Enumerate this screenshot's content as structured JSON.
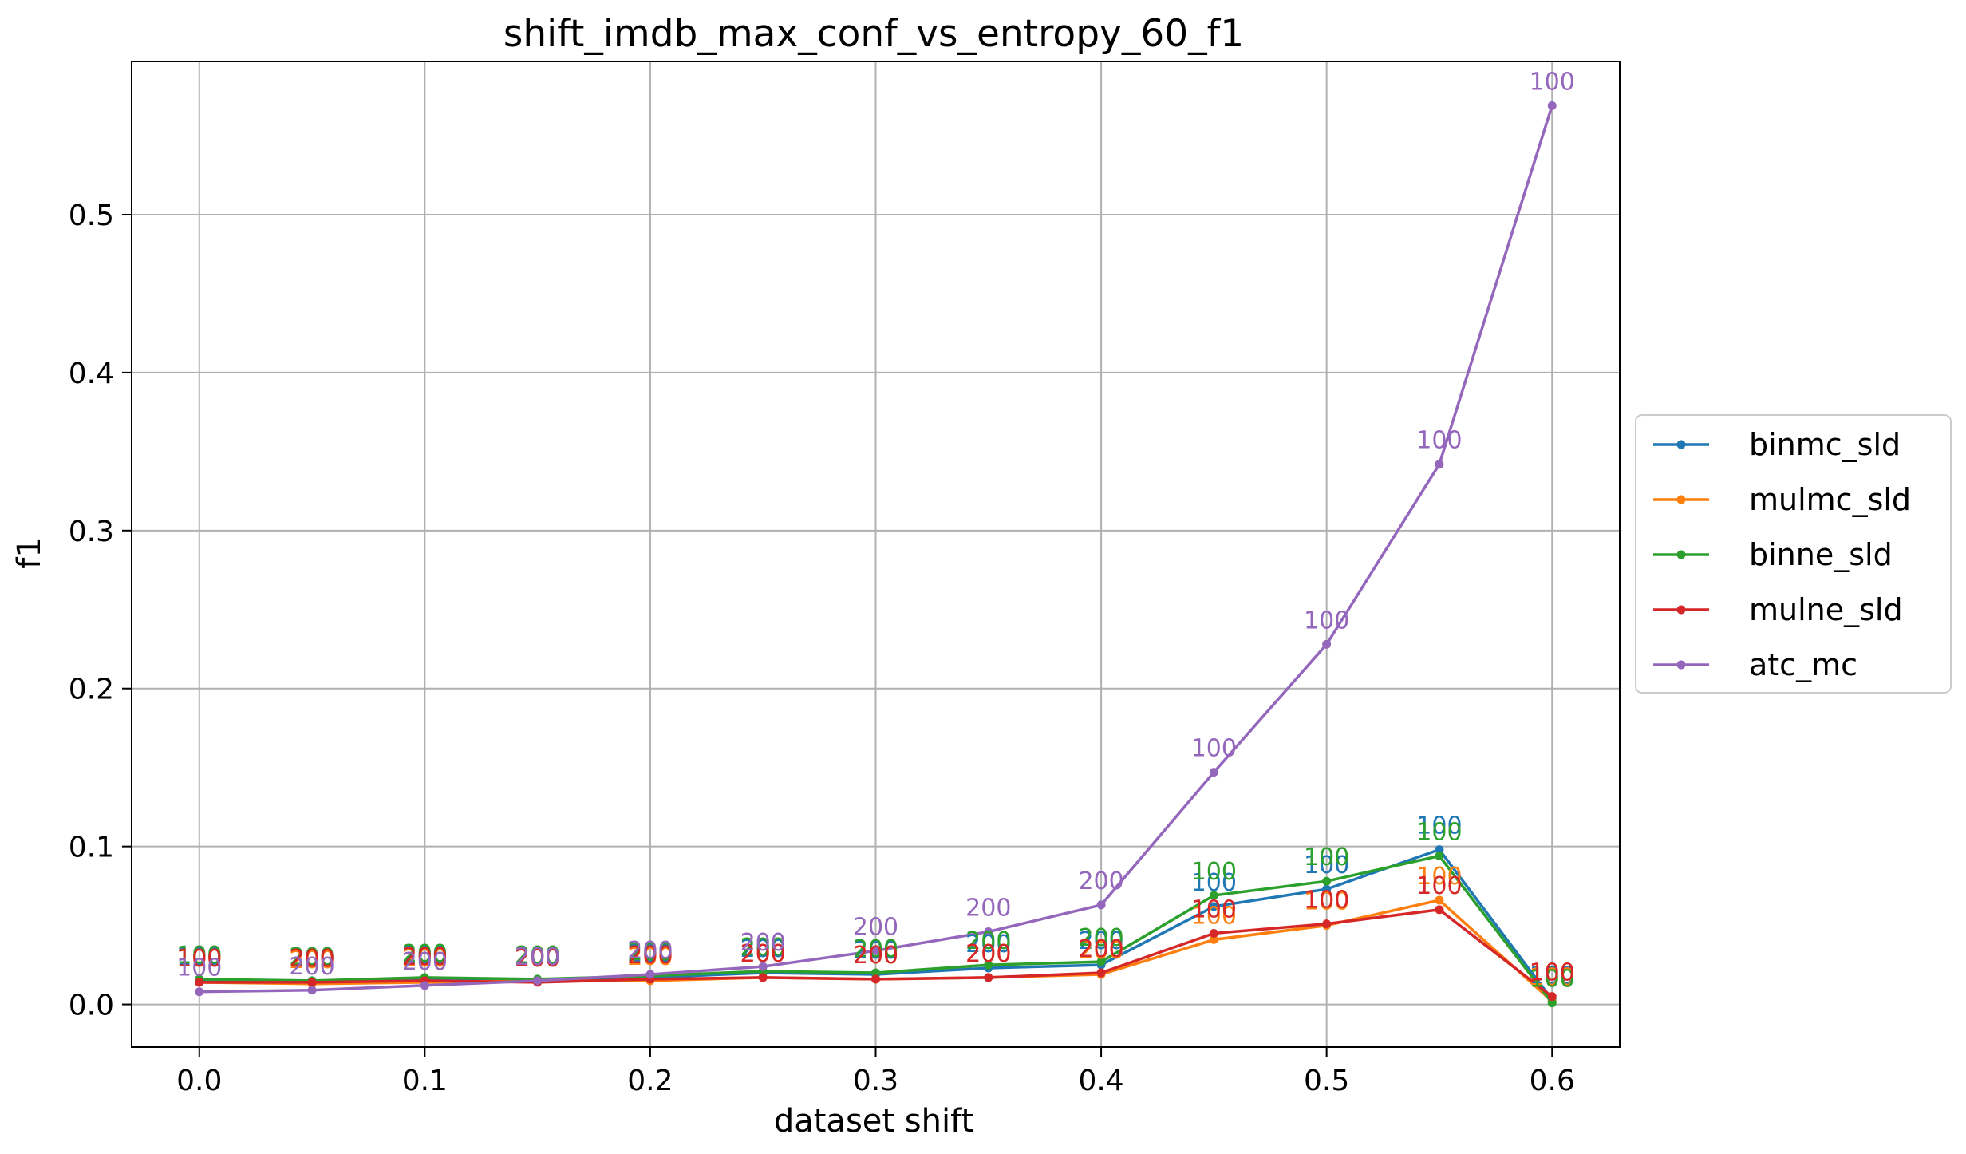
{
  "chart_data": {
    "type": "line",
    "title": "shift_imdb_max_conf_vs_entropy_60_f1",
    "xlabel": "dataset shift",
    "ylabel": "f1",
    "xlim": [
      -0.03,
      0.63
    ],
    "ylim": [
      -0.027,
      0.597
    ],
    "x_ticks": [
      0.0,
      0.1,
      0.2,
      0.3,
      0.4,
      0.5,
      0.6
    ],
    "x_tick_labels": [
      "0.0",
      "0.1",
      "0.2",
      "0.3",
      "0.4",
      "0.5",
      "0.6"
    ],
    "y_ticks": [
      0.0,
      0.1,
      0.2,
      0.3,
      0.4,
      0.5
    ],
    "y_tick_labels": [
      "0.0",
      "0.1",
      "0.2",
      "0.3",
      "0.4",
      "0.5"
    ],
    "grid": true,
    "legend_position": "right-outside",
    "x": [
      0.0,
      0.05,
      0.1,
      0.15,
      0.2,
      0.25,
      0.3,
      0.35,
      0.4,
      0.45,
      0.5,
      0.55,
      0.6
    ],
    "point_labels": [
      "100",
      "200",
      "200",
      "200",
      "200",
      "200",
      "200",
      "200",
      "200",
      "100",
      "100",
      "100",
      "100"
    ],
    "series": [
      {
        "name": "binmc_sld",
        "color": "#1f77b4",
        "values": [
          0.015,
          0.014,
          0.016,
          0.015,
          0.017,
          0.02,
          0.019,
          0.023,
          0.025,
          0.062,
          0.073,
          0.098,
          0.003
        ]
      },
      {
        "name": "mulmc_sld",
        "color": "#ff7f0e",
        "values": [
          0.014,
          0.013,
          0.014,
          0.015,
          0.015,
          0.017,
          0.016,
          0.017,
          0.019,
          0.041,
          0.05,
          0.066,
          0.002
        ]
      },
      {
        "name": "binne_sld",
        "color": "#2ca02c",
        "values": [
          0.016,
          0.015,
          0.017,
          0.016,
          0.018,
          0.021,
          0.02,
          0.025,
          0.027,
          0.069,
          0.078,
          0.094,
          0.001
        ]
      },
      {
        "name": "mulne_sld",
        "color": "#d62728",
        "values": [
          0.014,
          0.014,
          0.015,
          0.014,
          0.016,
          0.017,
          0.016,
          0.017,
          0.02,
          0.045,
          0.051,
          0.06,
          0.005
        ]
      },
      {
        "name": "atc_mc",
        "color": "#9467bd",
        "values": [
          0.008,
          0.009,
          0.012,
          0.015,
          0.019,
          0.024,
          0.034,
          0.046,
          0.063,
          0.147,
          0.228,
          0.342,
          0.569
        ]
      }
    ]
  }
}
